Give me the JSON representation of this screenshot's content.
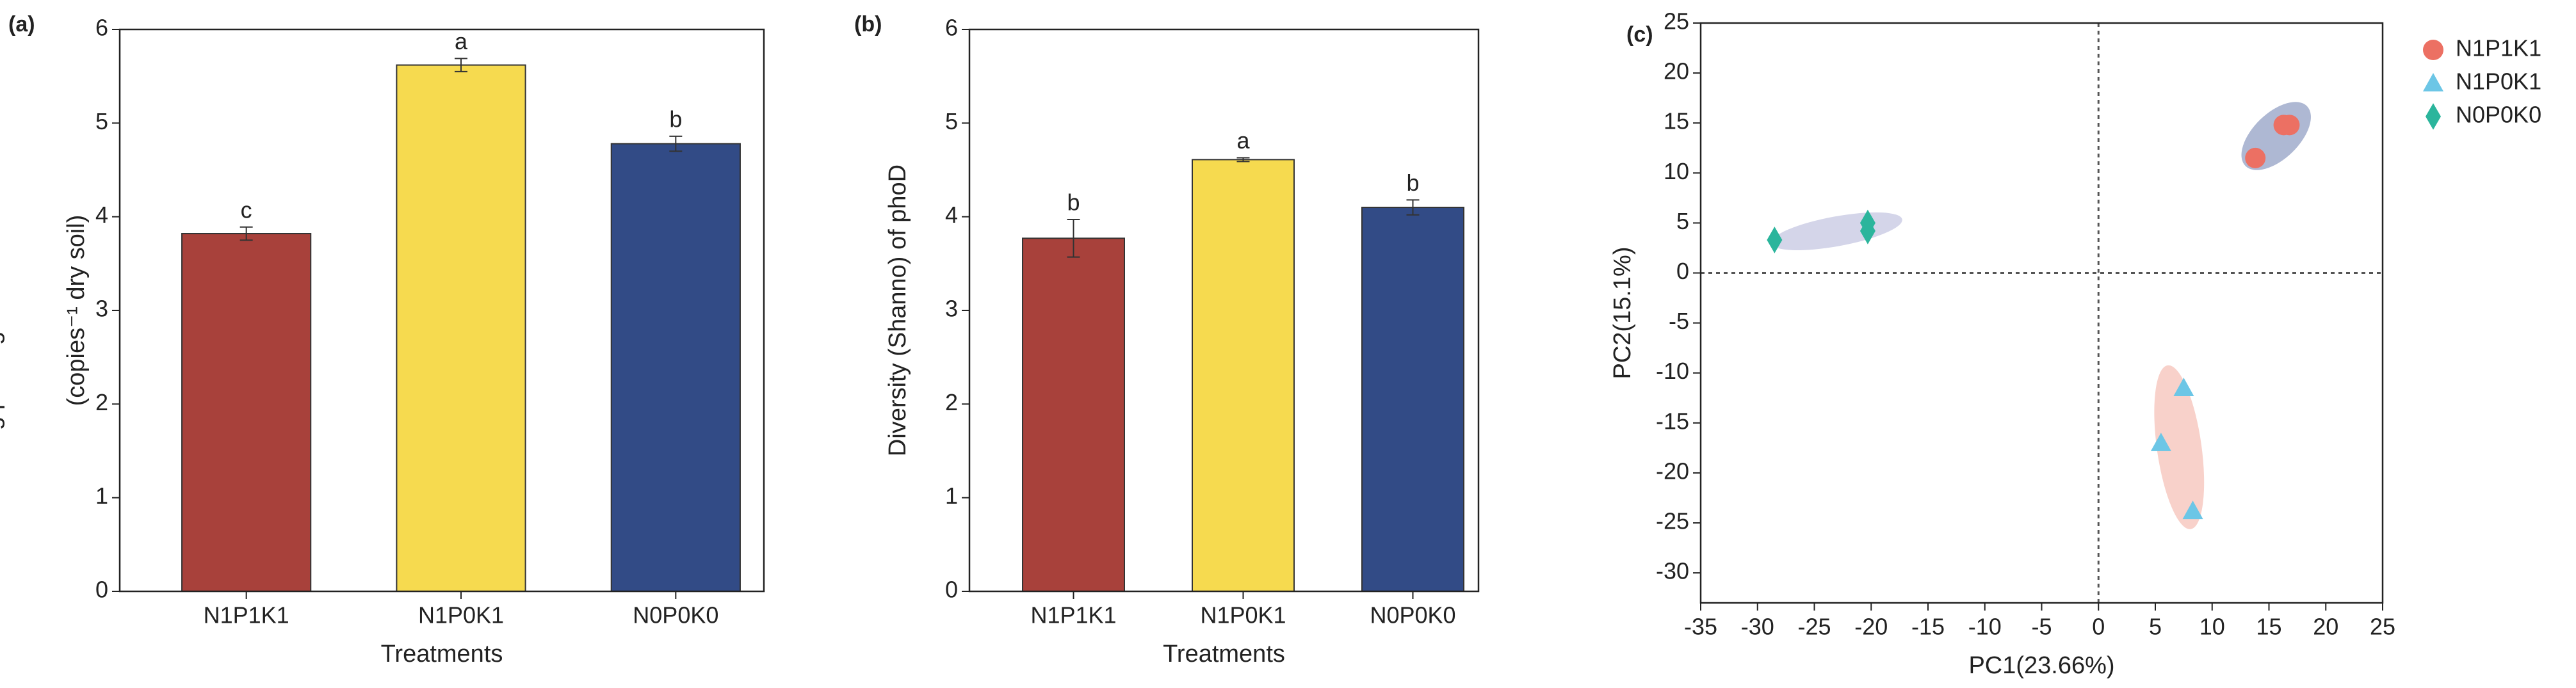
{
  "chart_data": [
    {
      "type": "bar",
      "title": "(a)",
      "xlabel": "Treatments",
      "ylabel": [
        "Log phoD gene abundance",
        "(copies⁻¹ dry soil)"
      ],
      "categories": [
        "N1P1K1",
        "N1P0K1",
        "N0P0K0"
      ],
      "values": [
        3.82,
        5.62,
        4.78
      ],
      "errors": [
        0.07,
        0.07,
        0.08
      ],
      "value_labels": [
        "c",
        "a",
        "b"
      ],
      "colors": [
        "#a8413b",
        "#f6da4f",
        "#324b86"
      ],
      "ylim": [
        0,
        6
      ],
      "yticks": [
        0,
        1,
        2,
        3,
        4,
        5,
        6
      ]
    },
    {
      "type": "bar",
      "title": "(b)",
      "xlabel": "Treatments",
      "ylabel": [
        "Diversity (Shanno) of phoD"
      ],
      "categories": [
        "N1P1K1",
        "N1P0K1",
        "N0P0K0"
      ],
      "values": [
        3.77,
        4.61,
        4.1
      ],
      "errors": [
        0.2,
        0.02,
        0.08
      ],
      "value_labels": [
        "b",
        "a",
        "b"
      ],
      "colors": [
        "#a8413b",
        "#f6da4f",
        "#324b86"
      ],
      "ylim": [
        0,
        6
      ],
      "yticks": [
        0,
        1,
        2,
        3,
        4,
        5,
        6
      ]
    },
    {
      "type": "scatter",
      "title": "(c)",
      "xlabel": "PC1(23.66%)",
      "ylabel": [
        "PC2(15.1%)"
      ],
      "xlim": [
        -35,
        25
      ],
      "ylim": [
        -33,
        25
      ],
      "xticks": [
        -35,
        -30,
        -25,
        -20,
        -15,
        -10,
        -5,
        0,
        5,
        10,
        15,
        20,
        25
      ],
      "yticks": [
        -30,
        -25,
        -20,
        -15,
        -10,
        -5,
        0,
        5,
        10,
        15,
        20,
        25
      ],
      "series": [
        {
          "name": "N1P1K1",
          "color": "#ec7063",
          "marker": "circle",
          "ellipse_color": "#9aa6c8",
          "x": [
            13.8,
            16.3,
            16.8
          ],
          "values": [
            11.5,
            14.8,
            14.8
          ]
        },
        {
          "name": "N1P0K1",
          "color": "#6cc6e6",
          "marker": "triangle",
          "ellipse_color": "#f6c6bd",
          "x": [
            7.5,
            5.5,
            8.3
          ],
          "values": [
            -11.5,
            -17,
            -23.8
          ]
        },
        {
          "name": "N0P0K0",
          "color": "#2bb59c",
          "marker": "diamond",
          "ellipse_color": "#c9cbe3",
          "x": [
            -28.5,
            -20.3,
            -20.3
          ],
          "values": [
            3.3,
            4.2,
            5
          ]
        }
      ]
    }
  ]
}
